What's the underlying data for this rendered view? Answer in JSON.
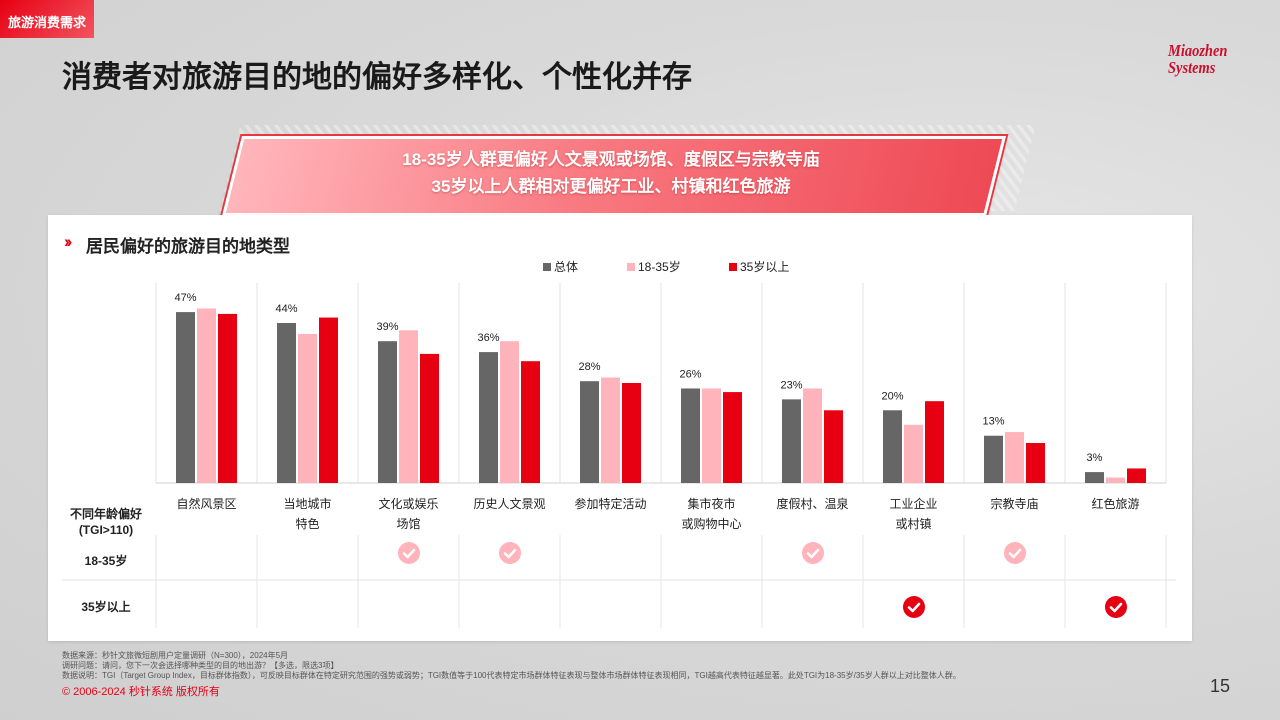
{
  "section_tag": "旅游消费需求",
  "page_title": "消费者对旅游目的地的偏好多样化、个性化并存",
  "logo": {
    "line1": "Miaozhen",
    "line2": "Systems"
  },
  "banner": {
    "line1": "18-35岁人群更偏好人文景观或场馆、度假区与宗教寺庙",
    "line2": "35岁以上人群相对更偏好工业、村镇和红色旅游"
  },
  "colors": {
    "total": "#666666",
    "young": "#ffb3ba",
    "older": "#e60012",
    "accent": "#e60012"
  },
  "chart_data": {
    "type": "bar",
    "title": "居民偏好的旅游目的地类型",
    "categories": [
      "自然风景区",
      "当地城市\n特色",
      "文化或娱乐\n场馆",
      "历史人文景观",
      "参加特定活动",
      "集市夜市\n或购物中心",
      "度假村、温泉",
      "工业企业\n或村镇",
      "宗教寺庙",
      "红色旅游"
    ],
    "series": [
      {
        "name": "总体",
        "values": [
          47,
          44,
          39,
          36,
          28,
          26,
          23,
          20,
          13,
          3
        ]
      },
      {
        "name": "18-35岁",
        "values": [
          48,
          41,
          42,
          39,
          29,
          26,
          26,
          16,
          14,
          1.5
        ]
      },
      {
        "name": "35岁以上",
        "values": [
          46.5,
          45.5,
          35.5,
          33.5,
          27.5,
          25,
          20,
          22.5,
          11,
          4
        ]
      }
    ],
    "data_labels": [
      "47%",
      "44%",
      "39%",
      "36%",
      "28%",
      "26%",
      "23%",
      "20%",
      "13%",
      "3%"
    ],
    "ylim": [
      0,
      55
    ]
  },
  "tgi_table": {
    "header": "不同年龄偏好\n(TGI>110)",
    "rows": [
      {
        "label": "18-35岁",
        "checks": [
          false,
          false,
          true,
          true,
          false,
          false,
          true,
          false,
          true,
          false
        ]
      },
      {
        "label": "35岁以上",
        "checks": [
          false,
          false,
          false,
          false,
          false,
          false,
          false,
          true,
          false,
          true
        ]
      }
    ]
  },
  "source": {
    "line1": "数据来源：秒针文旅微短剧用户定量调研（N=300），2024年5月",
    "line2": "调研问题：请问，您下一次会选择哪种类型的目的地出游？【多选，限选3项】",
    "line3": "数据说明：TGI（Target Group Index，目标群体指数），可反映目标群体在特定研究范围的强势或弱势；TGI数值等于100代表特定市场群体特征表现与整体市场群体特征表现相同，TGI越高代表特征越显著。此处TGI为18-35岁/35岁人群以上对比整体人群。"
  },
  "copyright": "© 2006-2024 秒针系统 版权所有",
  "page_number": "15"
}
